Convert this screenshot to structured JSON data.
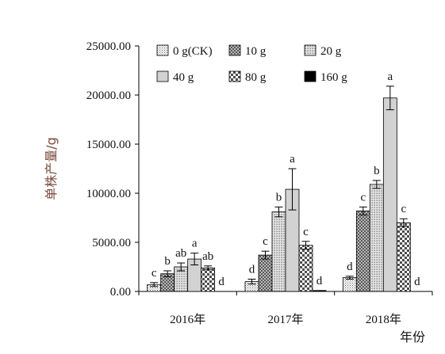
{
  "chart_data": {
    "type": "bar",
    "title": "",
    "ylabel": "单株产量/g",
    "xlabel": "年份",
    "ylim": [
      0,
      25000
    ],
    "yticks": [
      "0.00",
      "5000.00",
      "10000.00",
      "15000.00",
      "20000.00",
      "25000.00"
    ],
    "categories": [
      "2016年",
      "2017年",
      "2018年"
    ],
    "legend_position": "top",
    "series": [
      {
        "name": "0 g(CK)",
        "pattern": "fine-dots",
        "values": [
          700,
          1000,
          1400
        ],
        "errors": [
          200,
          250,
          150
        ],
        "letters": [
          "c",
          "d",
          "d"
        ]
      },
      {
        "name": "10 g",
        "pattern": "cross-hatch",
        "values": [
          1800,
          3700,
          8200
        ],
        "errors": [
          300,
          400,
          400
        ],
        "letters": [
          "b",
          "c",
          "c"
        ]
      },
      {
        "name": "20 g",
        "pattern": "dots",
        "values": [
          2500,
          8100,
          10900
        ],
        "errors": [
          400,
          500,
          400
        ],
        "letters": [
          "ab",
          "b",
          "b"
        ]
      },
      {
        "name": "40 g",
        "pattern": "light-gray",
        "values": [
          3300,
          10400,
          19700
        ],
        "errors": [
          600,
          2100,
          1200
        ],
        "letters": [
          "a",
          "a",
          "a"
        ]
      },
      {
        "name": "80 g",
        "pattern": "checker",
        "values": [
          2400,
          4700,
          7000
        ],
        "errors": [
          200,
          400,
          400
        ],
        "letters": [
          "ab",
          "c",
          "c"
        ]
      },
      {
        "name": "160 g",
        "pattern": "black",
        "values": [
          0,
          100,
          0
        ],
        "errors": [
          0,
          0,
          0
        ],
        "letters": [
          "d",
          "d",
          "d"
        ]
      }
    ]
  }
}
